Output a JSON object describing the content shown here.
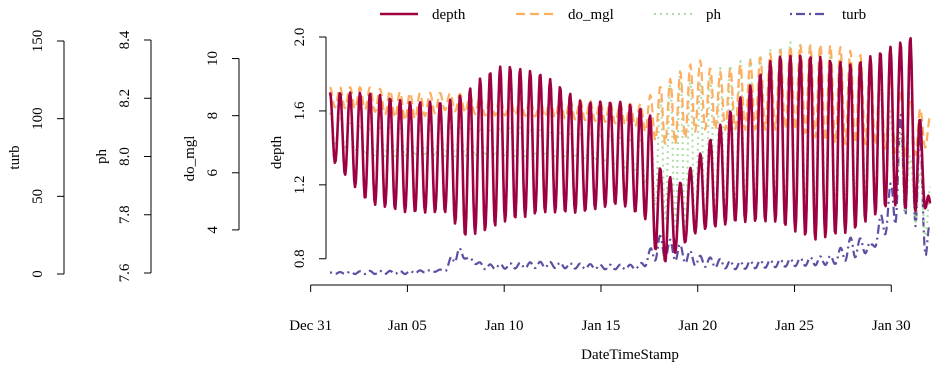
{
  "chart_data": {
    "type": "line",
    "title": "",
    "xlabel": "DateTimeStamp",
    "x_ticks": [
      "Dec 31",
      "Jan 05",
      "Jan 10",
      "Jan 15",
      "Jan 20",
      "Jan 25",
      "Jan 30"
    ],
    "x_tick_dates": [
      "2019-12-31",
      "2020-01-05",
      "2020-01-10",
      "2020-01-15",
      "2020-01-20",
      "2020-01-25",
      "2020-01-30"
    ],
    "xlim": [
      "2020-01-01",
      "2020-02-01"
    ],
    "axes": [
      {
        "key": "turb",
        "label": "turb",
        "ylim": [
          0,
          150
        ],
        "ticks": [
          0,
          50,
          100,
          150
        ],
        "tick_labels": [
          "0",
          "50",
          "100",
          "150"
        ]
      },
      {
        "key": "ph",
        "label": "ph",
        "ylim": [
          7.6,
          8.4
        ],
        "ticks": [
          7.6,
          7.8,
          8.0,
          8.2,
          8.4
        ],
        "tick_labels": [
          "7.6",
          "7.8",
          "8.0",
          "8.2",
          "8.4"
        ]
      },
      {
        "key": "do_mgl",
        "label": "do_mgl",
        "ylim": [
          2.0,
          11.0
        ],
        "ticks": [
          4,
          6,
          8,
          10
        ],
        "tick_labels": [
          "4",
          "6",
          "8",
          "10"
        ]
      },
      {
        "key": "depth",
        "label": "depth",
        "ylim": [
          0.75,
          2.0
        ],
        "ticks": [
          0.8,
          1.2,
          1.6,
          2.0
        ],
        "tick_labels": [
          "0.8",
          "1.2",
          "1.6",
          "2.0"
        ]
      }
    ],
    "legend_position": "top",
    "series": [
      {
        "name": "depth",
        "axis": "depth",
        "color": "#9e0142",
        "dash": "solid",
        "x": [
          "2020-01-01",
          "2020-01-03",
          "2020-01-05",
          "2020-01-07",
          "2020-01-08",
          "2020-01-09",
          "2020-01-10",
          "2020-01-12",
          "2020-01-14",
          "2020-01-16",
          "2020-01-17.5",
          "2020-01-18",
          "2020-01-19",
          "2020-01-20",
          "2020-01-22",
          "2020-01-24",
          "2020-01-26",
          "2020-01-28",
          "2020-01-30",
          "2020-01-31",
          "2020-02-01"
        ],
        "min": [
          1.35,
          1.1,
          1.05,
          1.05,
          0.92,
          0.95,
          1.0,
          1.05,
          1.05,
          1.1,
          1.0,
          0.75,
          0.85,
          0.95,
          1.0,
          1.0,
          0.9,
          0.95,
          1.1,
          1.05,
          1.08
        ],
        "max": [
          1.7,
          1.7,
          1.65,
          1.65,
          1.7,
          1.8,
          1.85,
          1.8,
          1.65,
          1.65,
          1.6,
          1.3,
          1.2,
          1.35,
          1.65,
          1.9,
          1.9,
          1.85,
          1.95,
          2.0,
          1.1
        ]
      },
      {
        "name": "do_mgl",
        "axis": "do_mgl",
        "color": "#fdae61",
        "dash": "dashed",
        "x": [
          "2020-01-01",
          "2020-01-03",
          "2020-01-05",
          "2020-01-07",
          "2020-01-09",
          "2020-01-11",
          "2020-01-13",
          "2020-01-15",
          "2020-01-17",
          "2020-01-18",
          "2020-01-19",
          "2020-01-20",
          "2020-01-21",
          "2020-01-23",
          "2020-01-25",
          "2020-01-27",
          "2020-01-29",
          "2020-01-31",
          "2020-02-01"
        ],
        "min": [
          8.3,
          8.2,
          7.8,
          8.2,
          8.0,
          8.0,
          7.9,
          7.8,
          7.6,
          7.0,
          7.0,
          7.5,
          7.5,
          7.5,
          7.5,
          7.0,
          7.0,
          6.5,
          7.0
        ],
        "max": [
          9.0,
          9.0,
          8.8,
          8.8,
          8.7,
          8.6,
          8.6,
          8.5,
          8.4,
          9.0,
          9.5,
          10.0,
          9.5,
          10.0,
          10.5,
          10.5,
          10.0,
          8.5,
          8.0
        ]
      },
      {
        "name": "ph",
        "axis": "ph",
        "color": "#abdda4",
        "dash": "dotted",
        "x": [
          "2020-01-01",
          "2020-01-03",
          "2020-01-05",
          "2020-01-07",
          "2020-01-09",
          "2020-01-11",
          "2020-01-13",
          "2020-01-15",
          "2020-01-17",
          "2020-01-18",
          "2020-01-19",
          "2020-01-20",
          "2020-01-21",
          "2020-01-23",
          "2020-01-25",
          "2020-01-27",
          "2020-01-29",
          "2020-01-31",
          "2020-02-01"
        ],
        "min": [
          8.05,
          8.0,
          8.0,
          8.0,
          8.0,
          8.0,
          8.0,
          7.98,
          7.95,
          7.8,
          7.75,
          7.75,
          7.8,
          7.85,
          7.85,
          7.85,
          7.9,
          7.8,
          7.7
        ],
        "max": [
          8.15,
          8.1,
          8.1,
          8.1,
          8.1,
          8.1,
          8.08,
          8.08,
          8.05,
          8.2,
          8.3,
          8.25,
          8.3,
          8.35,
          8.4,
          8.35,
          8.3,
          8.0,
          7.9
        ]
      },
      {
        "name": "turb",
        "axis": "turb",
        "color": "#5e4fa2",
        "dash": "dashdot",
        "x": [
          "2020-01-01",
          "2020-01-03",
          "2020-01-05",
          "2020-01-07",
          "2020-01-07.5",
          "2020-01-08",
          "2020-01-09",
          "2020-01-12",
          "2020-01-15",
          "2020-01-17",
          "2020-01-18",
          "2020-01-19",
          "2020-01-20",
          "2020-01-22",
          "2020-01-25",
          "2020-01-27",
          "2020-01-28",
          "2020-01-29",
          "2020-01-30",
          "2020-01-31",
          "2020-02-01"
        ],
        "min": [
          0,
          0,
          0,
          2,
          8,
          10,
          3,
          4,
          3,
          3,
          10,
          8,
          5,
          3,
          5,
          6,
          10,
          15,
          30,
          40,
          3
        ],
        "max": [
          1,
          2,
          2,
          3,
          20,
          12,
          6,
          8,
          6,
          6,
          25,
          20,
          12,
          8,
          10,
          12,
          25,
          20,
          60,
          150,
          30
        ]
      }
    ]
  }
}
